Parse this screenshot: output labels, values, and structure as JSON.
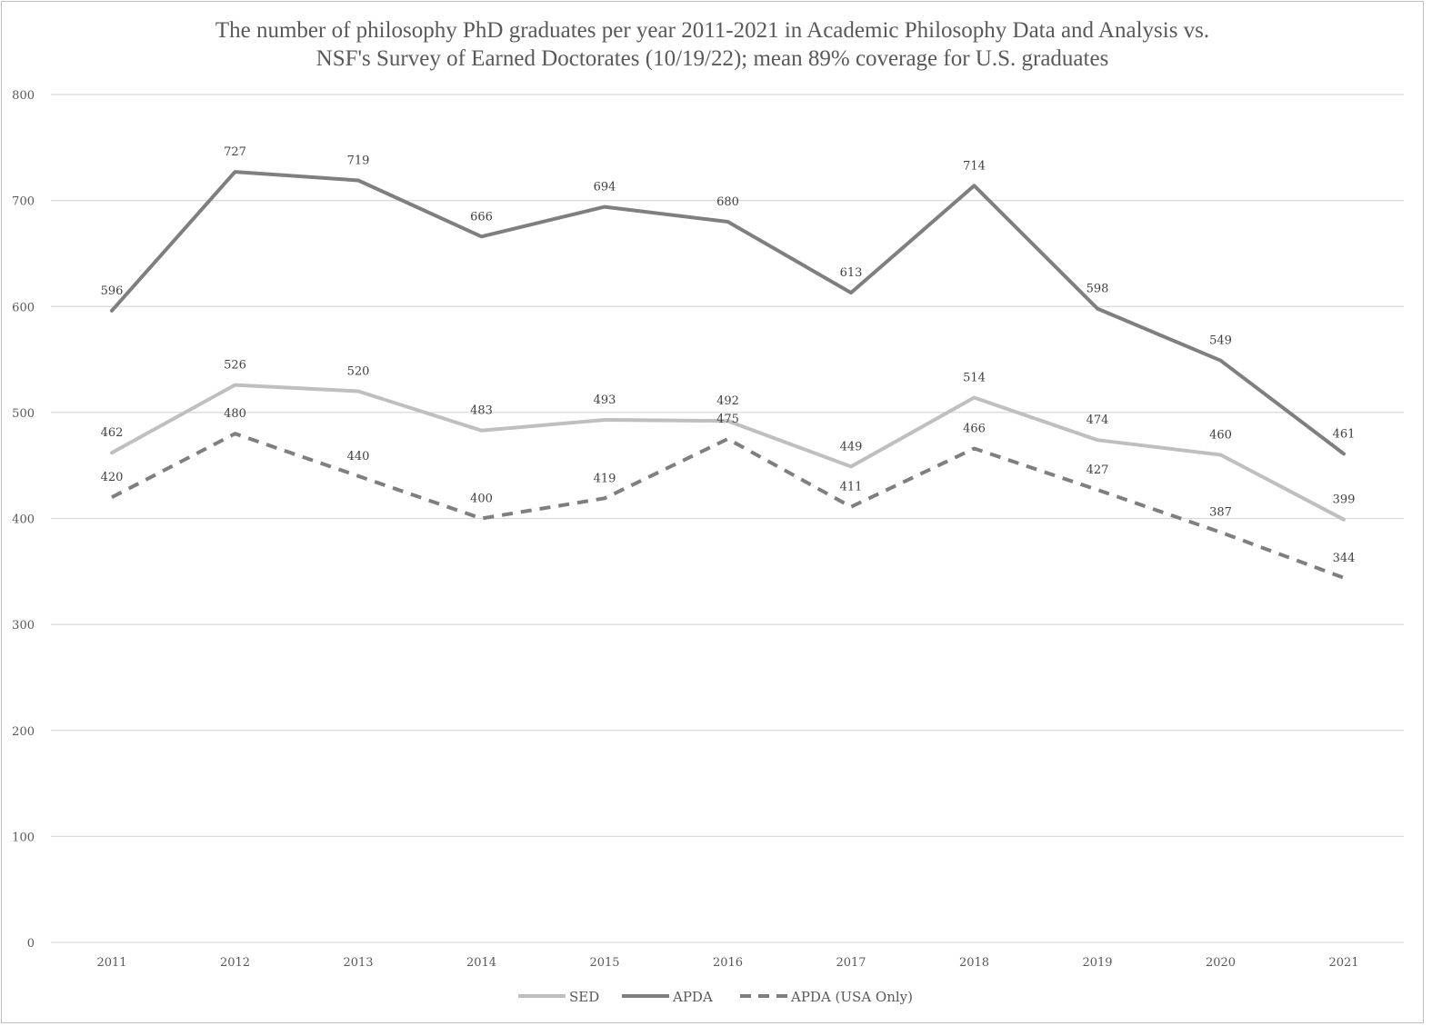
{
  "chart_data": {
    "type": "line",
    "title_line1": "The number of philosophy PhD graduates per year 2011-2021 in Academic Philosophy Data and Analysis vs.",
    "title_line2": "NSF's Survey of Earned Doctorates  (10/19/22); mean 89% coverage for U.S. graduates",
    "categories": [
      "2011",
      "2012",
      "2013",
      "2014",
      "2015",
      "2016",
      "2017",
      "2018",
      "2019",
      "2020",
      "2021"
    ],
    "ylim": [
      0,
      800
    ],
    "yticks": [
      0,
      100,
      200,
      300,
      400,
      500,
      600,
      700,
      800
    ],
    "grid": true,
    "legend_position": "bottom",
    "series": [
      {
        "name": "SED",
        "color": "#bfbfbf",
        "dash": "solid",
        "values": [
          462,
          526,
          520,
          483,
          493,
          492,
          449,
          514,
          474,
          460,
          399
        ]
      },
      {
        "name": "APDA",
        "color": "#7f7f7f",
        "dash": "solid",
        "values": [
          596,
          727,
          719,
          666,
          694,
          680,
          613,
          714,
          598,
          549,
          461
        ]
      },
      {
        "name": "APDA (USA Only)",
        "color": "#7f7f7f",
        "dash": "dashed",
        "values": [
          420,
          480,
          440,
          400,
          419,
          475,
          411,
          466,
          427,
          387,
          344
        ]
      }
    ]
  }
}
